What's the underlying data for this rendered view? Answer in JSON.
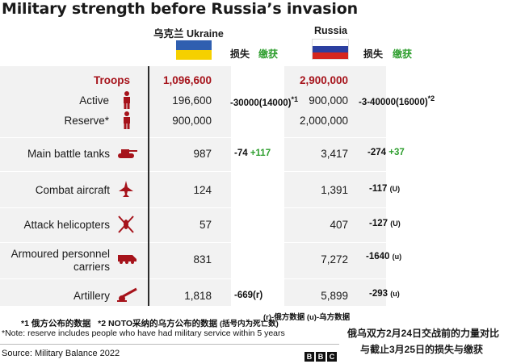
{
  "title": "Military strength before Russia’s invasion",
  "headers": {
    "ukraine_cn": "乌克兰",
    "ukraine": "Ukraine",
    "russia": "Russia",
    "loss": "损失",
    "captured": "缴获"
  },
  "colors": {
    "accent_red": "#a6131b",
    "captured_green": "#2e9e2e",
    "band_gray": "#f2f2f2",
    "ukraine_flag_blue": "#2f5fb0",
    "ukraine_flag_yellow": "#f5d000",
    "russia_flag_blue": "#2b3fa0",
    "russia_flag_red": "#d5261e"
  },
  "rows": [
    {
      "label": "Troops",
      "ukraine": "1,096,600",
      "russia": "2,900,000",
      "highlight": true,
      "icon": ""
    },
    {
      "label": "Active",
      "ukraine": "196,600",
      "russia": "900,000",
      "icon": "soldier-icon",
      "ua_loss": "-30000(14000)",
      "ua_loss_sup": "*1",
      "ru_loss": "-3-40000(16000)",
      "ru_loss_sup": "*2"
    },
    {
      "label": "Reserve*",
      "ukraine": "900,000",
      "russia": "2,000,000",
      "icon": "reservist-icon"
    },
    {
      "label": "Main battle tanks",
      "ukraine": "987",
      "russia": "3,417",
      "icon": "tank-icon",
      "ua_loss": "-74",
      "ua_captured": "+117",
      "ru_loss": "-274",
      "ru_captured": "+37"
    },
    {
      "label": "Combat aircraft",
      "ukraine": "124",
      "russia": "1,391",
      "icon": "jet-icon",
      "ru_loss": "-117",
      "ru_loss_sup": "(U)"
    },
    {
      "label": "Attack helicopters",
      "ukraine": "57",
      "russia": "407",
      "icon": "helicopter-icon",
      "ru_loss": "-127",
      "ru_loss_sup": "(U)"
    },
    {
      "label": "Armoured personnel carriers",
      "label_line1": "Armoured personnel",
      "label_line2": "carriers",
      "ukraine": "831",
      "russia": "7,272",
      "icon": "apc-icon",
      "ru_loss": "-1640",
      "ru_loss_sup": "(u)"
    },
    {
      "label": "Artillery",
      "ukraine": "1,818",
      "russia": "5,899",
      "icon": "artillery-icon",
      "ua_loss": "-669(r)",
      "ru_loss": "-293",
      "ru_loss_sup": "(u)"
    }
  ],
  "footnotes": {
    "cn_1": "*1 俄方公布的数据",
    "cn_2": "*2 NOTO采纳的乌方公布的数据",
    "cn_2_paren": "(括号内为死亡数)",
    "cn_sources": "(r)-俄方数据 (u)-乌方数据",
    "reserve_note": "*Note: reserve includes people who have had military service within 5 years",
    "source": "Source: Military Balance 2022",
    "bbc_letters": [
      "B",
      "B",
      "C"
    ],
    "summary_line1": "俄乌双方2月24日交战前的力量对比",
    "summary_line2": "与截止3月25日的损失与缴获"
  },
  "chart_data": {
    "type": "table",
    "title": "Military strength before Russia’s invasion",
    "columns": [
      "",
      "Ukraine",
      "损失 / 缴获",
      "Russia",
      "损失 / 缴获"
    ],
    "rows": [
      [
        "Troops",
        1096600,
        "",
        2900000,
        ""
      ],
      [
        "Active",
        196600,
        "-30000(14000)",
        900000,
        "-3-40000(16000)"
      ],
      [
        "Reserve*",
        900000,
        "",
        2000000,
        ""
      ],
      [
        "Main battle tanks",
        987,
        "-74 +117",
        3417,
        "-274 +37"
      ],
      [
        "Combat aircraft",
        124,
        "",
        1391,
        "-117 (U)"
      ],
      [
        "Attack helicopters",
        57,
        "",
        407,
        "-127 (U)"
      ],
      [
        "Armoured personnel carriers",
        831,
        "",
        7272,
        "-1640 (u)"
      ],
      [
        "Artillery",
        1818,
        "-669(r)",
        5899,
        "-293 (u)"
      ]
    ]
  }
}
